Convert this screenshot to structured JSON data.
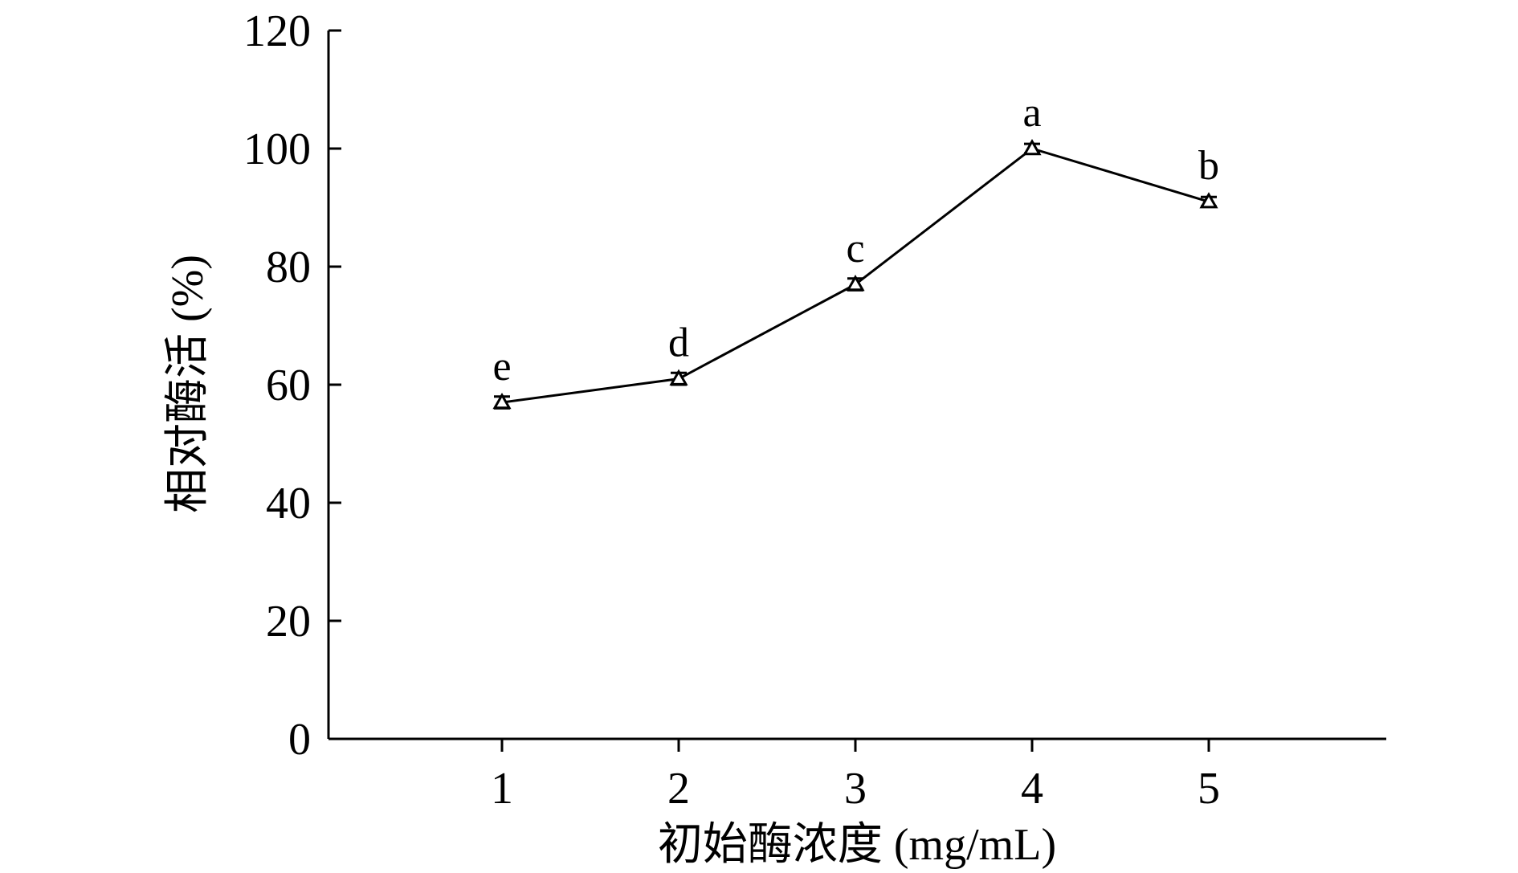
{
  "chart_data": {
    "type": "line",
    "title": "",
    "xlabel": "初始酶浓度 (mg/mL)",
    "ylabel": "相对酶活 (%)",
    "x": [
      1,
      2,
      3,
      4,
      5
    ],
    "x_tick_labels": [
      "1",
      "2",
      "3",
      "4",
      "5"
    ],
    "y_tick_labels": [
      "0",
      "20",
      "40",
      "60",
      "80",
      "100",
      "120"
    ],
    "ylim": [
      0,
      120
    ],
    "y_ticks": [
      0,
      20,
      40,
      60,
      80,
      100,
      120
    ],
    "grid": false,
    "legend": "none",
    "series": [
      {
        "marker": "triangle",
        "values": [
          57,
          61,
          77,
          100,
          91
        ],
        "error": [
          1.0,
          1.0,
          1.0,
          0.8,
          0.8
        ],
        "significance_labels": [
          "e",
          "d",
          "c",
          "a",
          "b"
        ]
      }
    ],
    "colors": {
      "line": "#000000",
      "axis": "#000000",
      "background": "#ffffff"
    }
  }
}
